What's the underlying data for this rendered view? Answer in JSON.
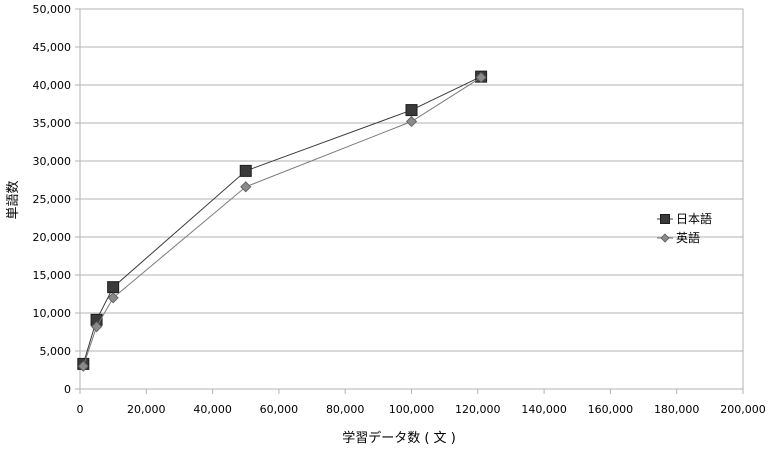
{
  "chart_data": {
    "type": "line",
    "title": "",
    "xlabel": "学習データ数 ( 文 )",
    "ylabel": "単語数",
    "xlim": [
      0,
      200000
    ],
    "ylim": [
      0,
      50000
    ],
    "x_ticks": [
      "0",
      "20,000",
      "40,000",
      "60,000",
      "80,000",
      "100,000",
      "120,000",
      "140,000",
      "160,000",
      "180,000",
      "200,000"
    ],
    "y_ticks": [
      "0",
      "5,000",
      "10,000",
      "15,000",
      "20,000",
      "25,000",
      "30,000",
      "35,000",
      "40,000",
      "45,000",
      "50,000"
    ],
    "grid": "horizontal",
    "legend_position": "right",
    "series": [
      {
        "name": "日本語",
        "marker": "square",
        "line_color": "#3a3a3a",
        "marker_color": "#3a3a3a",
        "x": [
          1000,
          5000,
          10000,
          50000,
          100000,
          121000
        ],
        "y": [
          3300,
          9100,
          13400,
          28700,
          36700,
          41100
        ]
      },
      {
        "name": "英語",
        "marker": "diamond",
        "line_color": "#7a7a7a",
        "marker_color": "#8a8a8a",
        "x": [
          1000,
          5000,
          10000,
          50000,
          100000,
          121000
        ],
        "y": [
          3000,
          8200,
          12000,
          26600,
          35200,
          41000
        ]
      }
    ]
  }
}
